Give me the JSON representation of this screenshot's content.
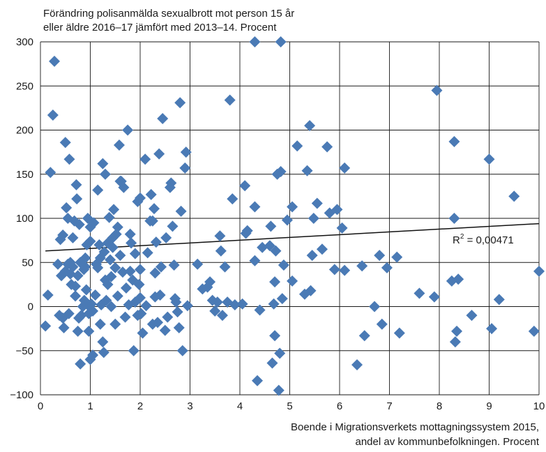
{
  "chart_data": {
    "type": "scatter",
    "ylabel_lines": [
      "Förändring polisanmälda sexualbrott mot person 15 år",
      "eller äldre 2016–17 jämfört med 2013–14. Procent"
    ],
    "xlabel_lines": [
      "Boende i Migrationsverkets mottagningssystem 2015,",
      "andel av kommunbefolkningen. Procent"
    ],
    "xlim": [
      0,
      10
    ],
    "ylim": [
      -100,
      300
    ],
    "xticks": [
      "0",
      "1",
      "2",
      "3",
      "4",
      "5",
      "6",
      "7",
      "8",
      "9",
      "10"
    ],
    "yticks": [
      "−100",
      "−50",
      "0",
      "50",
      "100",
      "150",
      "200",
      "250",
      "300"
    ],
    "grid": true,
    "marker_color": "#4a7ab5",
    "trendline": {
      "x": [
        0.1,
        10
      ],
      "y": [
        63,
        94
      ]
    },
    "annotation": {
      "base": "R",
      "sup": "2",
      "rest": " = 0,00471"
    },
    "points": [
      [
        0.1,
        -22
      ],
      [
        0.15,
        13
      ],
      [
        0.2,
        152
      ],
      [
        0.25,
        217
      ],
      [
        0.28,
        278
      ],
      [
        0.35,
        48
      ],
      [
        0.38,
        -10
      ],
      [
        0.4,
        76
      ],
      [
        0.42,
        35
      ],
      [
        0.45,
        -13
      ],
      [
        0.45,
        81
      ],
      [
        0.47,
        -24
      ],
      [
        0.5,
        186
      ],
      [
        0.5,
        40
      ],
      [
        0.52,
        112
      ],
      [
        0.55,
        48
      ],
      [
        0.55,
        100
      ],
      [
        0.57,
        -8
      ],
      [
        0.58,
        167
      ],
      [
        0.6,
        37
      ],
      [
        0.6,
        50
      ],
      [
        0.62,
        25
      ],
      [
        0.65,
        45
      ],
      [
        0.65,
        78
      ],
      [
        0.68,
        97
      ],
      [
        0.7,
        12
      ],
      [
        0.7,
        23
      ],
      [
        0.72,
        138
      ],
      [
        0.73,
        122
      ],
      [
        0.75,
        -28
      ],
      [
        0.75,
        35
      ],
      [
        0.77,
        -13
      ],
      [
        0.78,
        93
      ],
      [
        0.8,
        -65
      ],
      [
        0.8,
        50
      ],
      [
        0.82,
        -10
      ],
      [
        0.85,
        0
      ],
      [
        0.87,
        42
      ],
      [
        0.88,
        7
      ],
      [
        0.9,
        45
      ],
      [
        0.9,
        55
      ],
      [
        0.92,
        19
      ],
      [
        0.93,
        70
      ],
      [
        0.95,
        100
      ],
      [
        0.97,
        -28
      ],
      [
        0.97,
        -8
      ],
      [
        0.98,
        0
      ],
      [
        1.0,
        -60
      ],
      [
        1.0,
        90
      ],
      [
        1.0,
        74
      ],
      [
        1.02,
        3
      ],
      [
        1.05,
        -55
      ],
      [
        1.05,
        -5
      ],
      [
        1.07,
        95
      ],
      [
        1.1,
        13
      ],
      [
        1.12,
        48
      ],
      [
        1.15,
        44
      ],
      [
        1.15,
        132
      ],
      [
        1.18,
        70
      ],
      [
        1.2,
        55
      ],
      [
        1.2,
        -20
      ],
      [
        1.22,
        2
      ],
      [
        1.25,
        162
      ],
      [
        1.25,
        -40
      ],
      [
        1.27,
        -52
      ],
      [
        1.28,
        62
      ],
      [
        1.3,
        30
      ],
      [
        1.3,
        150
      ],
      [
        1.32,
        7
      ],
      [
        1.35,
        72
      ],
      [
        1.35,
        25
      ],
      [
        1.38,
        101
      ],
      [
        1.4,
        53
      ],
      [
        1.42,
        0
      ],
      [
        1.42,
        34
      ],
      [
        1.45,
        67
      ],
      [
        1.45,
        78
      ],
      [
        1.47,
        110
      ],
      [
        1.5,
        44
      ],
      [
        1.5,
        -20
      ],
      [
        1.52,
        82
      ],
      [
        1.55,
        90
      ],
      [
        1.55,
        12
      ],
      [
        1.58,
        183
      ],
      [
        1.6,
        142
      ],
      [
        1.6,
        58
      ],
      [
        1.62,
        142
      ],
      [
        1.65,
        39
      ],
      [
        1.67,
        135
      ],
      [
        1.7,
        -12
      ],
      [
        1.72,
        21
      ],
      [
        1.75,
        200
      ],
      [
        1.77,
        2
      ],
      [
        1.8,
        40
      ],
      [
        1.8,
        82
      ],
      [
        1.82,
        72
      ],
      [
        1.85,
        30
      ],
      [
        1.87,
        -50
      ],
      [
        1.9,
        5
      ],
      [
        1.9,
        60
      ],
      [
        1.95,
        -10
      ],
      [
        1.95,
        119
      ],
      [
        1.98,
        25
      ],
      [
        2.0,
        123
      ],
      [
        2.0,
        10
      ],
      [
        2.0,
        42
      ],
      [
        2.02,
        -8
      ],
      [
        2.05,
        -30
      ],
      [
        2.1,
        167
      ],
      [
        2.12,
        1
      ],
      [
        2.15,
        61
      ],
      [
        2.2,
        97
      ],
      [
        2.22,
        127
      ],
      [
        2.25,
        97
      ],
      [
        2.25,
        -20
      ],
      [
        2.28,
        111
      ],
      [
        2.3,
        11
      ],
      [
        2.3,
        38
      ],
      [
        2.32,
        73
      ],
      [
        2.35,
        -18
      ],
      [
        2.38,
        173
      ],
      [
        2.4,
        13
      ],
      [
        2.42,
        45
      ],
      [
        2.45,
        213
      ],
      [
        2.5,
        -27
      ],
      [
        2.52,
        78
      ],
      [
        2.55,
        -12
      ],
      [
        2.6,
        135
      ],
      [
        2.62,
        140
      ],
      [
        2.65,
        91
      ],
      [
        2.68,
        47
      ],
      [
        2.7,
        9
      ],
      [
        2.72,
        5
      ],
      [
        2.75,
        -6
      ],
      [
        2.78,
        -24
      ],
      [
        2.8,
        231
      ],
      [
        2.82,
        108
      ],
      [
        2.85,
        -50
      ],
      [
        2.9,
        157
      ],
      [
        2.92,
        175
      ],
      [
        2.95,
        1
      ],
      [
        3.15,
        48
      ],
      [
        3.25,
        20
      ],
      [
        3.35,
        22
      ],
      [
        3.4,
        28
      ],
      [
        3.45,
        7
      ],
      [
        3.5,
        -5
      ],
      [
        3.55,
        5
      ],
      [
        3.6,
        80
      ],
      [
        3.62,
        63
      ],
      [
        3.65,
        -10
      ],
      [
        3.7,
        45
      ],
      [
        3.75,
        5
      ],
      [
        3.8,
        234
      ],
      [
        3.85,
        122
      ],
      [
        3.9,
        2
      ],
      [
        4.05,
        3
      ],
      [
        4.1,
        137
      ],
      [
        4.12,
        83
      ],
      [
        4.15,
        86
      ],
      [
        4.3,
        52
      ],
      [
        4.3,
        113
      ],
      [
        4.35,
        -84
      ],
      [
        4.4,
        -4
      ],
      [
        4.45,
        67
      ],
      [
        4.6,
        69
      ],
      [
        4.62,
        91
      ],
      [
        4.65,
        -64
      ],
      [
        4.68,
        3
      ],
      [
        4.7,
        28
      ],
      [
        4.7,
        -33
      ],
      [
        4.72,
        63
      ],
      [
        4.75,
        150
      ],
      [
        4.78,
        -95
      ],
      [
        4.8,
        -53
      ],
      [
        4.82,
        153
      ],
      [
        4.85,
        9
      ],
      [
        4.88,
        47
      ],
      [
        4.95,
        98
      ],
      [
        5.05,
        113
      ],
      [
        5.05,
        29
      ],
      [
        5.15,
        182
      ],
      [
        5.3,
        14
      ],
      [
        5.35,
        154
      ],
      [
        5.4,
        205
      ],
      [
        5.42,
        18
      ],
      [
        5.45,
        58
      ],
      [
        5.48,
        100
      ],
      [
        5.55,
        117
      ],
      [
        5.65,
        65
      ],
      [
        5.75,
        181
      ],
      [
        5.8,
        106
      ],
      [
        5.9,
        42
      ],
      [
        5.95,
        110
      ],
      [
        6.05,
        89
      ],
      [
        6.1,
        157
      ],
      [
        6.1,
        41
      ],
      [
        6.35,
        -66
      ],
      [
        6.45,
        46
      ],
      [
        6.5,
        -33
      ],
      [
        6.7,
        0
      ],
      [
        6.8,
        58
      ],
      [
        6.85,
        -20
      ],
      [
        6.95,
        44
      ],
      [
        7.15,
        56
      ],
      [
        7.2,
        -30
      ],
      [
        7.6,
        15
      ],
      [
        7.9,
        11
      ],
      [
        7.95,
        245
      ],
      [
        8.25,
        29
      ],
      [
        8.3,
        187
      ],
      [
        8.3,
        100
      ],
      [
        8.32,
        -40
      ],
      [
        8.35,
        -28
      ],
      [
        8.38,
        31
      ],
      [
        8.65,
        -10
      ],
      [
        9.0,
        167
      ],
      [
        9.05,
        -25
      ],
      [
        9.2,
        8
      ],
      [
        9.5,
        125
      ],
      [
        9.9,
        -28
      ],
      [
        10.0,
        40
      ],
      [
        4.3,
        300
      ],
      [
        4.82,
        300
      ]
    ]
  }
}
